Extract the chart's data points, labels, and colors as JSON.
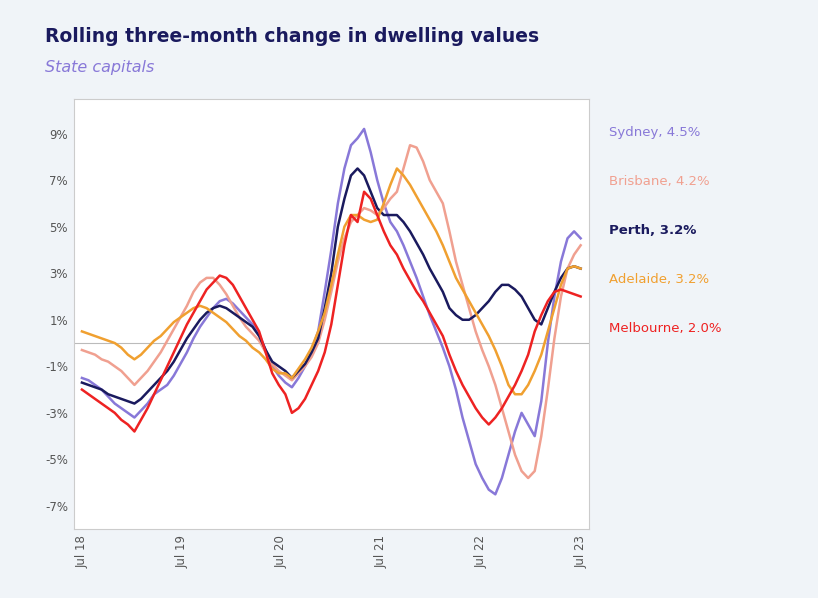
{
  "title_line1": "Rolling three-month change in dwelling values",
  "title_line2": "State capitals",
  "background_color": "#f0f4f8",
  "plot_bg_color": "#ffffff",
  "ylim": [
    -8,
    10.5
  ],
  "yticks": [
    -7,
    -5,
    -3,
    -1,
    1,
    3,
    5,
    7,
    9
  ],
  "x_tick_pos": [
    0,
    12,
    24,
    36,
    48,
    60
  ],
  "x_tick_labels": [
    "Jul 18",
    "Jul 19",
    "Jul 20",
    "Jul 21",
    "Jul 22",
    "Jul 23"
  ],
  "colors": {
    "Sydney": "#8878d8",
    "Brisbane": "#f0a090",
    "Perth": "#1a1a5e",
    "Adelaide": "#f0a030",
    "Melbourne": "#ee2222"
  },
  "legend_items": [
    {
      "label": "Sydney, 4.5%",
      "color": "#8878d8",
      "bold": false
    },
    {
      "label": "Brisbane, 4.2%",
      "color": "#f0a090",
      "bold": false
    },
    {
      "label": "Perth, 3.2%",
      "color": "#1a1a5e",
      "bold": true
    },
    {
      "label": "Adelaide, 3.2%",
      "color": "#f0a030",
      "bold": false
    },
    {
      "label": "Melbourne, 2.0%",
      "color": "#ee2222",
      "bold": false
    }
  ],
  "series": {
    "Sydney": [
      -1.5,
      -1.6,
      -1.8,
      -2.0,
      -2.3,
      -2.6,
      -2.8,
      -3.0,
      -3.2,
      -2.9,
      -2.6,
      -2.2,
      -2.0,
      -1.8,
      -1.4,
      -0.9,
      -0.4,
      0.2,
      0.7,
      1.1,
      1.5,
      1.8,
      1.9,
      1.7,
      1.4,
      1.1,
      0.8,
      0.4,
      -0.3,
      -1.0,
      -1.4,
      -1.7,
      -1.9,
      -1.5,
      -1.0,
      -0.3,
      0.5,
      2.2,
      4.0,
      6.0,
      7.5,
      8.5,
      8.8,
      9.2,
      8.2,
      7.0,
      6.0,
      5.2,
      4.8,
      4.2,
      3.5,
      2.8,
      2.0,
      1.2,
      0.5,
      -0.2,
      -1.0,
      -2.0,
      -3.2,
      -4.2,
      -5.2,
      -5.8,
      -6.3,
      -6.5,
      -5.8,
      -4.8,
      -3.8,
      -3.0,
      -3.5,
      -4.0,
      -2.5,
      0.0,
      2.0,
      3.5,
      4.5,
      4.8,
      4.5
    ],
    "Brisbane": [
      -0.3,
      -0.4,
      -0.5,
      -0.7,
      -0.8,
      -1.0,
      -1.2,
      -1.5,
      -1.8,
      -1.5,
      -1.2,
      -0.8,
      -0.4,
      0.1,
      0.6,
      1.1,
      1.6,
      2.2,
      2.6,
      2.8,
      2.8,
      2.5,
      2.1,
      1.6,
      1.1,
      0.7,
      0.4,
      0.1,
      -0.4,
      -0.9,
      -1.2,
      -1.4,
      -1.6,
      -1.3,
      -1.0,
      -0.6,
      0.0,
      1.0,
      2.2,
      3.5,
      4.5,
      5.2,
      5.5,
      5.8,
      5.7,
      5.5,
      5.8,
      6.2,
      6.5,
      7.5,
      8.5,
      8.4,
      7.8,
      7.0,
      6.5,
      6.0,
      4.8,
      3.5,
      2.5,
      1.5,
      0.5,
      -0.3,
      -1.0,
      -1.8,
      -2.8,
      -3.8,
      -4.8,
      -5.5,
      -5.8,
      -5.5,
      -4.0,
      -2.0,
      0.2,
      2.0,
      3.2,
      3.8,
      4.2
    ],
    "Perth": [
      -1.7,
      -1.8,
      -1.9,
      -2.0,
      -2.2,
      -2.3,
      -2.4,
      -2.5,
      -2.6,
      -2.4,
      -2.1,
      -1.8,
      -1.5,
      -1.2,
      -0.8,
      -0.3,
      0.2,
      0.6,
      1.0,
      1.3,
      1.5,
      1.6,
      1.5,
      1.3,
      1.1,
      0.9,
      0.7,
      0.3,
      -0.3,
      -0.8,
      -1.0,
      -1.2,
      -1.5,
      -1.2,
      -0.9,
      -0.4,
      0.2,
      1.5,
      3.0,
      5.0,
      6.2,
      7.2,
      7.5,
      7.2,
      6.5,
      5.8,
      5.5,
      5.5,
      5.5,
      5.2,
      4.8,
      4.3,
      3.8,
      3.2,
      2.7,
      2.2,
      1.5,
      1.2,
      1.0,
      1.0,
      1.2,
      1.5,
      1.8,
      2.2,
      2.5,
      2.5,
      2.3,
      2.0,
      1.5,
      1.0,
      0.8,
      1.5,
      2.2,
      2.8,
      3.2,
      3.3,
      3.2
    ],
    "Adelaide": [
      0.5,
      0.4,
      0.3,
      0.2,
      0.1,
      0.0,
      -0.2,
      -0.5,
      -0.7,
      -0.5,
      -0.2,
      0.1,
      0.3,
      0.6,
      0.9,
      1.1,
      1.3,
      1.5,
      1.6,
      1.5,
      1.3,
      1.1,
      0.9,
      0.6,
      0.3,
      0.1,
      -0.2,
      -0.4,
      -0.7,
      -1.1,
      -1.3,
      -1.3,
      -1.5,
      -1.1,
      -0.7,
      -0.2,
      0.5,
      1.3,
      2.5,
      3.8,
      5.0,
      5.5,
      5.5,
      5.3,
      5.2,
      5.3,
      6.0,
      6.8,
      7.5,
      7.2,
      6.8,
      6.3,
      5.8,
      5.3,
      4.8,
      4.2,
      3.5,
      2.8,
      2.3,
      1.8,
      1.3,
      0.8,
      0.3,
      -0.3,
      -1.0,
      -1.8,
      -2.2,
      -2.2,
      -1.8,
      -1.2,
      -0.5,
      0.5,
      1.5,
      2.5,
      3.2,
      3.3,
      3.2
    ],
    "Melbourne": [
      -2.0,
      -2.2,
      -2.4,
      -2.6,
      -2.8,
      -3.0,
      -3.3,
      -3.5,
      -3.8,
      -3.3,
      -2.8,
      -2.2,
      -1.6,
      -1.0,
      -0.4,
      0.2,
      0.8,
      1.3,
      1.8,
      2.3,
      2.6,
      2.9,
      2.8,
      2.5,
      2.0,
      1.5,
      1.0,
      0.5,
      -0.4,
      -1.3,
      -1.8,
      -2.2,
      -3.0,
      -2.8,
      -2.4,
      -1.8,
      -1.2,
      -0.4,
      0.8,
      2.5,
      4.2,
      5.5,
      5.2,
      6.5,
      6.2,
      5.5,
      4.8,
      4.2,
      3.8,
      3.2,
      2.7,
      2.2,
      1.8,
      1.3,
      0.8,
      0.3,
      -0.5,
      -1.2,
      -1.8,
      -2.3,
      -2.8,
      -3.2,
      -3.5,
      -3.2,
      -2.8,
      -2.3,
      -1.8,
      -1.2,
      -0.5,
      0.5,
      1.2,
      1.8,
      2.2,
      2.3,
      2.2,
      2.1,
      2.0
    ]
  }
}
